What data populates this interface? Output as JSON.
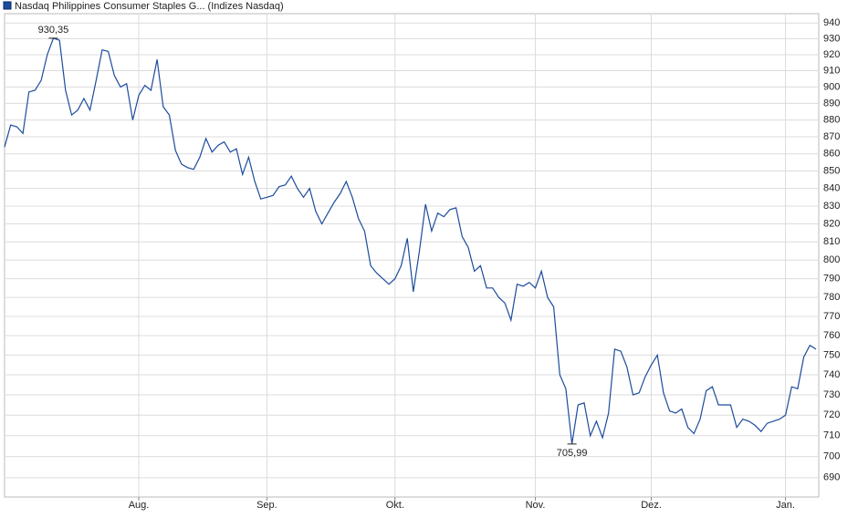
{
  "chart_data": {
    "type": "line",
    "categories": [
      null,
      null,
      null,
      null,
      null,
      null,
      null,
      null,
      null,
      null,
      null,
      null,
      null,
      null,
      null,
      null,
      null,
      null,
      null,
      null,
      null,
      null,
      "Aug.",
      null,
      null,
      null,
      null,
      null,
      null,
      null,
      null,
      null,
      null,
      null,
      null,
      null,
      null,
      null,
      null,
      null,
      null,
      null,
      null,
      "Sep.",
      null,
      null,
      null,
      null,
      null,
      null,
      null,
      null,
      null,
      null,
      null,
      null,
      null,
      null,
      null,
      null,
      null,
      null,
      null,
      null,
      "Okt.",
      null,
      null,
      null,
      null,
      null,
      null,
      null,
      null,
      null,
      null,
      null,
      null,
      null,
      null,
      null,
      null,
      null,
      null,
      null,
      null,
      null,
      null,
      "Nov.",
      null,
      null,
      null,
      null,
      null,
      null,
      null,
      null,
      null,
      null,
      null,
      null,
      null,
      null,
      null,
      null,
      null,
      null,
      "Dez.",
      null,
      null,
      null,
      null,
      null,
      null,
      null,
      null,
      null,
      null,
      null,
      null,
      null,
      null,
      null,
      null,
      null,
      null,
      null,
      null,
      null,
      "Jan.",
      null,
      null,
      null,
      null,
      null
    ],
    "series": [
      {
        "name": "Nasdaq Philippines Consumer Staples G... (Indizes Nasdaq)",
        "color": "#1c4c9c",
        "values": [
          864,
          877,
          876,
          872,
          897,
          898,
          904,
          920,
          930.35,
          929,
          898,
          883,
          886,
          893,
          886,
          904,
          923,
          922,
          907,
          900,
          902,
          880,
          895,
          901,
          898,
          917,
          888,
          883,
          862,
          854,
          852,
          851,
          858,
          869,
          861,
          865,
          867,
          861,
          863,
          848,
          858,
          844,
          834,
          835,
          836,
          841,
          842,
          847,
          840,
          835,
          840,
          827,
          820,
          826,
          832,
          837,
          844,
          835,
          823,
          816,
          797,
          793,
          790,
          787,
          790,
          797,
          812,
          783,
          805,
          831,
          816,
          826,
          824,
          828,
          829,
          813,
          807,
          794,
          797,
          785,
          785,
          780,
          777,
          768,
          787,
          786,
          788,
          785,
          794,
          780,
          775,
          740,
          733,
          705.99,
          725,
          726,
          710,
          717,
          709,
          721,
          753,
          752,
          744,
          730,
          731,
          739,
          745,
          750,
          731,
          722,
          721,
          723,
          714,
          711,
          718,
          732,
          734,
          725,
          725,
          725,
          714,
          718,
          717,
          715,
          712,
          716,
          717,
          718,
          720,
          734,
          733,
          749,
          755,
          753
        ],
        "value_labels": [
          null,
          null,
          null,
          null,
          null,
          null,
          null,
          null,
          "930,35",
          null,
          null,
          null,
          null,
          null,
          null,
          null,
          null,
          null,
          null,
          null,
          null,
          null,
          null,
          null,
          null,
          null,
          null,
          null,
          null,
          null,
          null,
          null,
          null,
          null,
          null,
          null,
          null,
          null,
          null,
          null,
          null,
          null,
          null,
          null,
          null,
          null,
          null,
          null,
          null,
          null,
          null,
          null,
          null,
          null,
          null,
          null,
          null,
          null,
          null,
          null,
          null,
          null,
          null,
          null,
          null,
          null,
          null,
          null,
          null,
          null,
          null,
          null,
          null,
          null,
          null,
          null,
          null,
          null,
          null,
          null,
          null,
          null,
          null,
          null,
          null,
          null,
          null,
          null,
          null,
          null,
          null,
          null,
          null,
          "705,99",
          null,
          null,
          null,
          null,
          null,
          null,
          null,
          null,
          null,
          null,
          null,
          null,
          null,
          null,
          null,
          null,
          null,
          null,
          null,
          null,
          null,
          null,
          null,
          null,
          null,
          null,
          null,
          null,
          null,
          null,
          null,
          null,
          null,
          null,
          null,
          null,
          null,
          null,
          null,
          null
        ]
      }
    ],
    "ylim": [
      681,
      946
    ],
    "yticks": [
      690,
      700,
      710,
      720,
      730,
      740,
      750,
      760,
      770,
      780,
      790,
      800,
      810,
      820,
      830,
      840,
      850,
      860,
      870,
      880,
      890,
      900,
      910,
      920,
      930,
      940
    ],
    "log_y": true,
    "grid": true
  }
}
